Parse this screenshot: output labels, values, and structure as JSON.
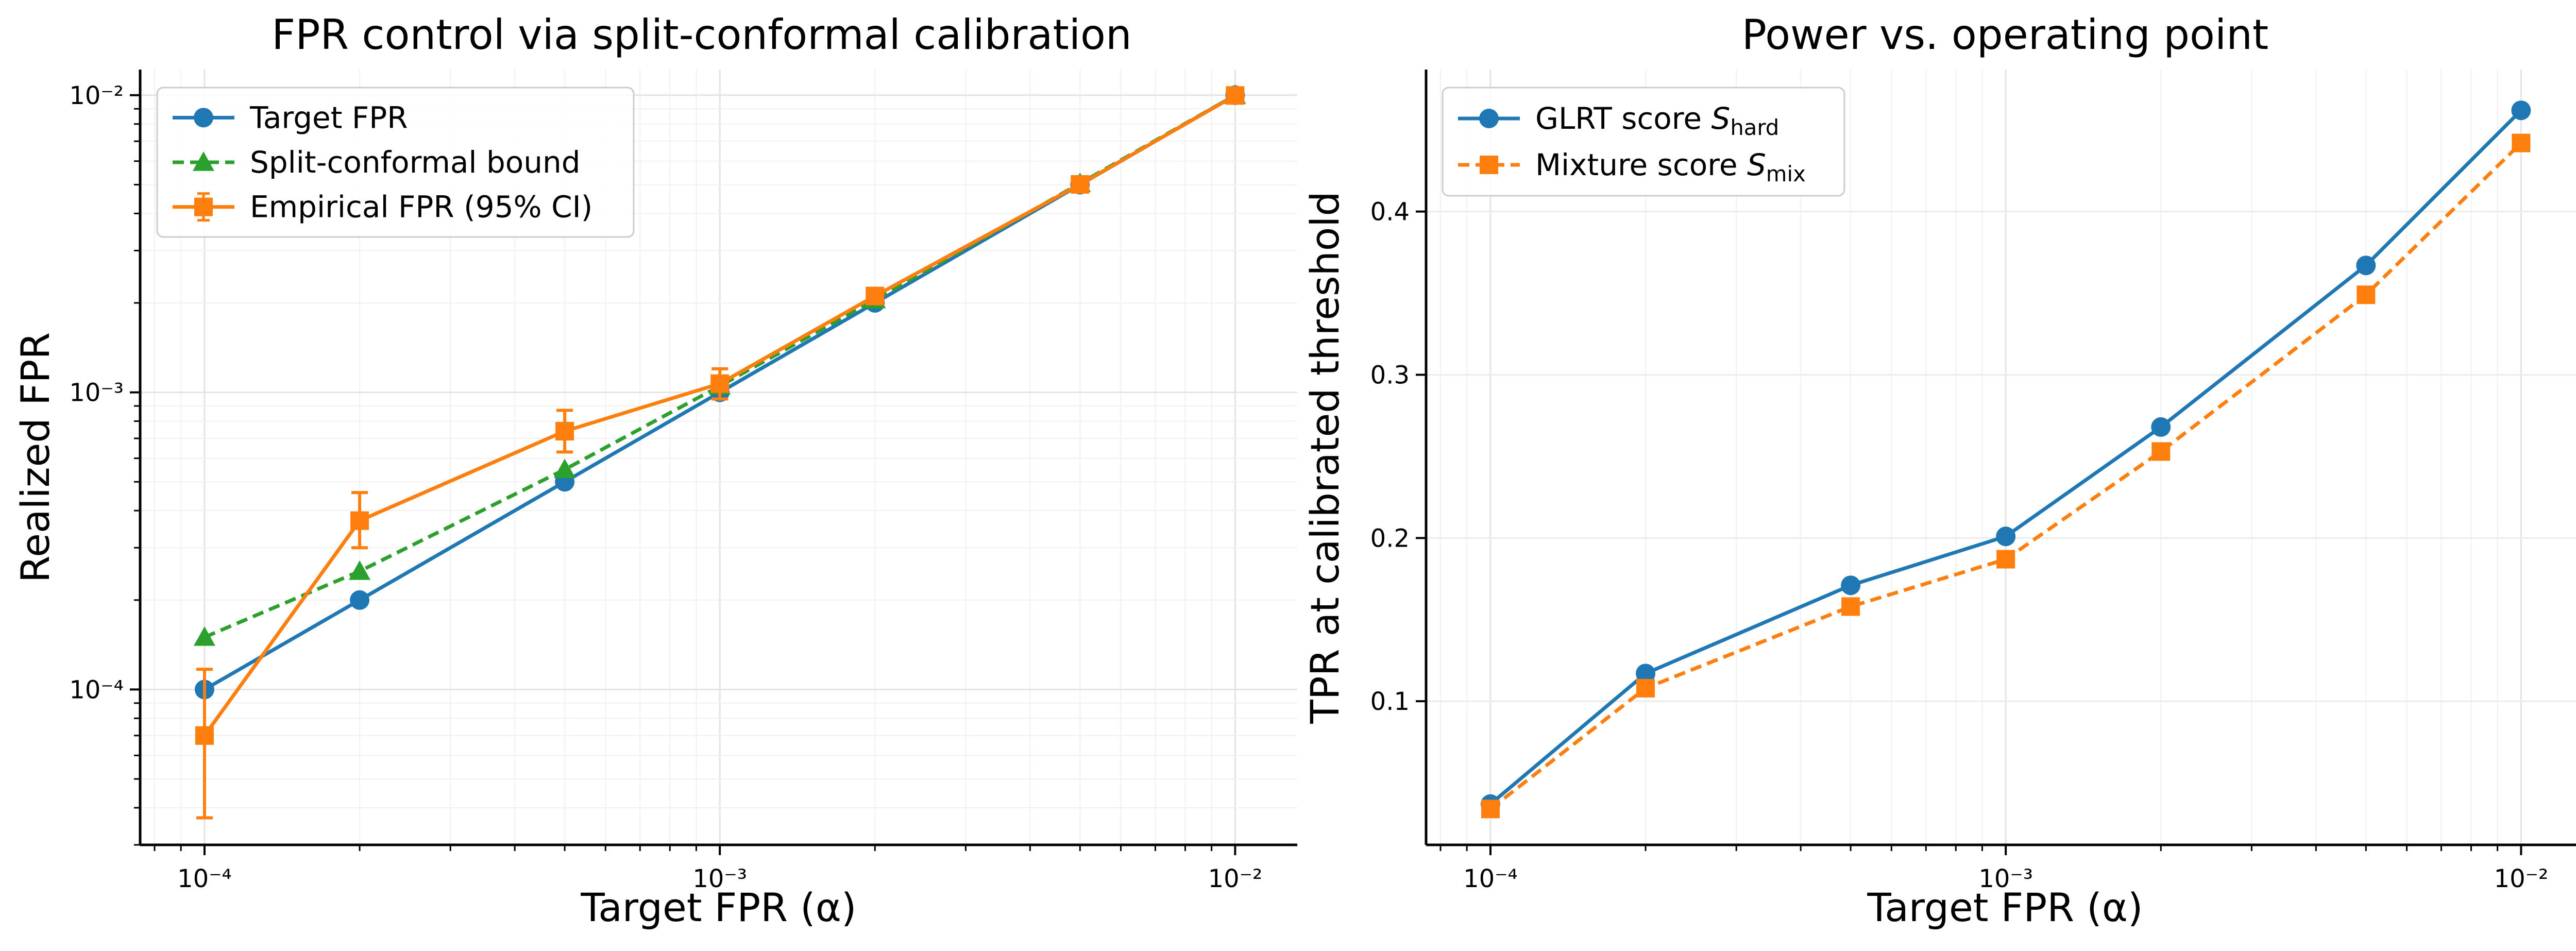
{
  "chart_data": [
    {
      "type": "line",
      "title": "FPR control via split-conformal calibration",
      "xlabel": "Target FPR (α)",
      "ylabel": "Realized FPR",
      "xscale": "log",
      "yscale": "log",
      "xlim": [
        7.5e-05,
        0.0132
      ],
      "ylim": [
        3e-05,
        0.0122
      ],
      "grid": true,
      "legend_position": "upper-left",
      "x_ticks": [
        {
          "value": 0.0001,
          "label": "10⁻⁴"
        },
        {
          "value": 0.001,
          "label": "10⁻³"
        },
        {
          "value": 0.01,
          "label": "10⁻²"
        }
      ],
      "y_ticks": [
        {
          "value": 0.0001,
          "label": "10⁻⁴"
        },
        {
          "value": 0.001,
          "label": "10⁻³"
        },
        {
          "value": 0.01,
          "label": "10⁻²"
        }
      ],
      "x": [
        0.0001,
        0.0002,
        0.0005,
        0.001,
        0.002,
        0.005,
        0.01
      ],
      "series": [
        {
          "name": "Target FPR",
          "color": "#1f77b4",
          "marker": "circle",
          "line": "solid",
          "values": [
            0.0001,
            0.0002,
            0.0005,
            0.001,
            0.002,
            0.005,
            0.01
          ]
        },
        {
          "name": "Split-conformal bound",
          "color": "#2ca02c",
          "marker": "triangle",
          "line": "dashed",
          "values": [
            0.00015,
            0.00025,
            0.00055,
            0.00105,
            0.00205,
            0.00505,
            0.01
          ]
        },
        {
          "name": "Empirical FPR (95% CI)",
          "color": "#ff7f0e",
          "marker": "square",
          "line": "solid",
          "values": [
            7e-05,
            0.00037,
            0.00074,
            0.00107,
            0.00211,
            0.00501,
            0.00998
          ],
          "ci_low": [
            3.7e-05,
            0.0003,
            0.00063,
            0.00095,
            0.00199,
            0.00488,
            0.00969
          ],
          "ci_high": [
            0.000117,
            0.00046,
            0.00087,
            0.0012,
            0.00224,
            0.00514,
            0.01028
          ]
        }
      ]
    },
    {
      "type": "line",
      "title": "Power vs. operating point",
      "xlabel": "Target FPR (α)",
      "ylabel": "TPR at calibrated threshold",
      "xscale": "log",
      "yscale": "linear",
      "xlim": [
        7.5e-05,
        0.0132
      ],
      "ylim": [
        0.012,
        0.487
      ],
      "grid": true,
      "legend_position": "upper-left",
      "x_ticks": [
        {
          "value": 0.0001,
          "label": "10⁻⁴"
        },
        {
          "value": 0.001,
          "label": "10⁻³"
        },
        {
          "value": 0.01,
          "label": "10⁻²"
        }
      ],
      "y_ticks": [
        {
          "value": 0.1,
          "label": "0.1"
        },
        {
          "value": 0.2,
          "label": "0.2"
        },
        {
          "value": 0.3,
          "label": "0.3"
        },
        {
          "value": 0.4,
          "label": "0.4"
        }
      ],
      "x": [
        0.0001,
        0.0002,
        0.0005,
        0.001,
        0.002,
        0.005,
        0.01
      ],
      "series": [
        {
          "name": "GLRT score S_hard",
          "legend_main": "GLRT score ",
          "legend_sym": "S",
          "legend_sub": "hard",
          "color": "#1f77b4",
          "marker": "circle",
          "line": "solid",
          "values": [
            0.037,
            0.117,
            0.171,
            0.201,
            0.268,
            0.367,
            0.462
          ]
        },
        {
          "name": "Mixture score S_mix",
          "legend_main": "Mixture score ",
          "legend_sym": "S",
          "legend_sub": "mix",
          "color": "#ff7f0e",
          "marker": "square",
          "line": "dashed",
          "values": [
            0.034,
            0.108,
            0.158,
            0.187,
            0.253,
            0.349,
            0.442
          ]
        }
      ]
    }
  ]
}
